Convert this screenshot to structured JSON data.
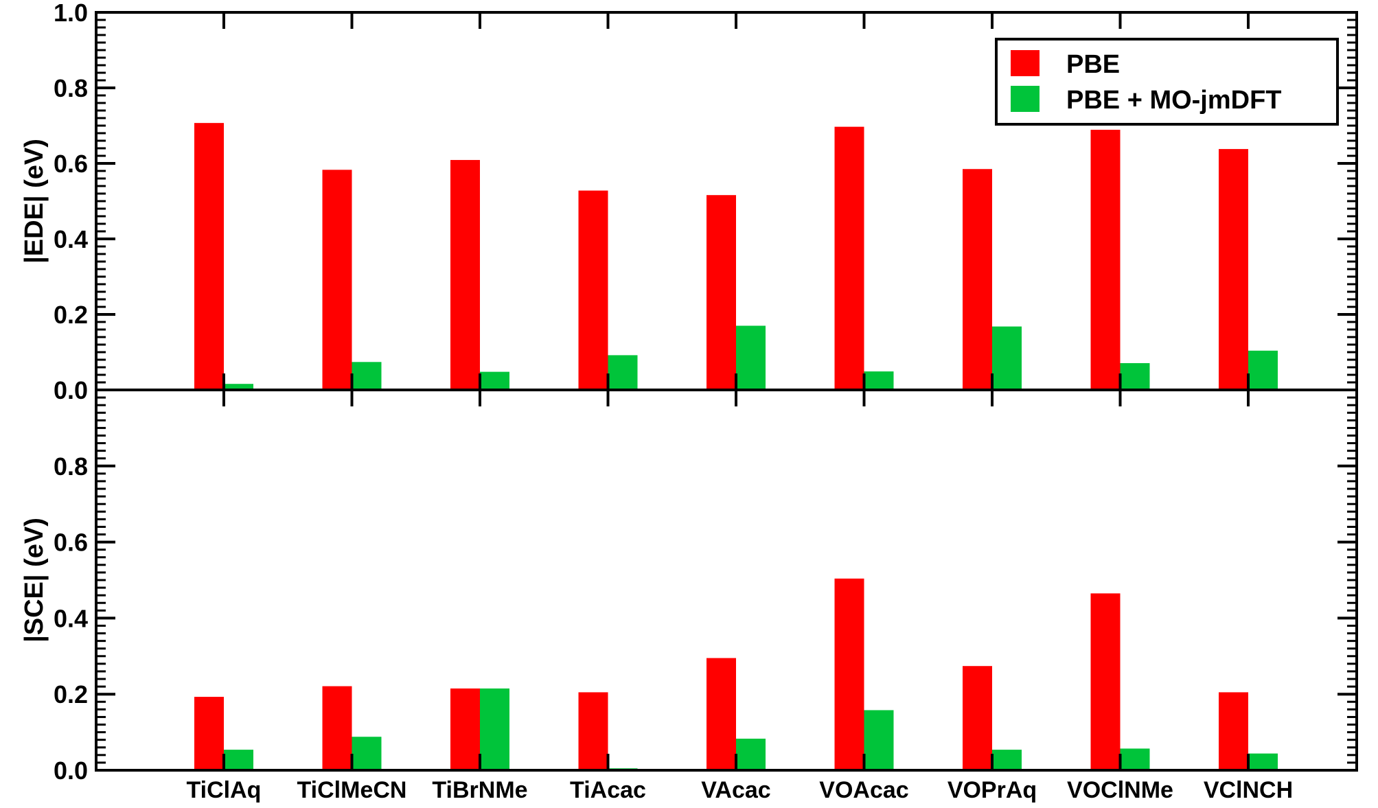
{
  "colors": {
    "series_pbe": "#ff0000",
    "series_mo": "#00c43a",
    "axes": "#000000"
  },
  "chart_data": [
    {
      "type": "bar",
      "panel": "top",
      "ylabel": "|EDE| (eV)",
      "ylim": [
        0.0,
        1.0
      ],
      "yticks": [
        "0.0",
        "0.2",
        "0.4",
        "0.6",
        "0.8",
        "1.0"
      ],
      "categories": [
        "TiClAq",
        "TiClMeCN",
        "TiBrNMe",
        "TiAcac",
        "VAcac",
        "VOAcac",
        "VOPrAq",
        "VOClNMe",
        "VClNCH"
      ],
      "series": [
        {
          "name": "PBE",
          "values": [
            0.707,
            0.583,
            0.609,
            0.528,
            0.516,
            0.697,
            0.585,
            0.689,
            0.638
          ]
        },
        {
          "name": "PBE + MO-jmDFT",
          "values": [
            0.016,
            0.074,
            0.048,
            0.092,
            0.17,
            0.049,
            0.168,
            0.071,
            0.104
          ]
        }
      ],
      "legend": "top-right",
      "grid": false
    },
    {
      "type": "bar",
      "panel": "bottom",
      "ylabel": "|SCE| (eV)",
      "xlabel": "",
      "ylim": [
        0.0,
        1.0
      ],
      "yticks": [
        "0.0",
        "0.2",
        "0.4",
        "0.6",
        "0.8"
      ],
      "categories": [
        "TiClAq",
        "TiClMeCN",
        "TiBrNMe",
        "TiAcac",
        "VAcac",
        "VOAcac",
        "VOPrAq",
        "VOClNMe",
        "VClNCH"
      ],
      "series": [
        {
          "name": "PBE",
          "values": [
            0.193,
            0.221,
            0.215,
            0.205,
            0.295,
            0.504,
            0.274,
            0.465,
            0.205
          ]
        },
        {
          "name": "PBE + MO-jmDFT",
          "values": [
            0.054,
            0.088,
            0.215,
            0.005,
            0.083,
            0.158,
            0.054,
            0.057,
            0.044
          ]
        }
      ],
      "grid": false
    }
  ]
}
